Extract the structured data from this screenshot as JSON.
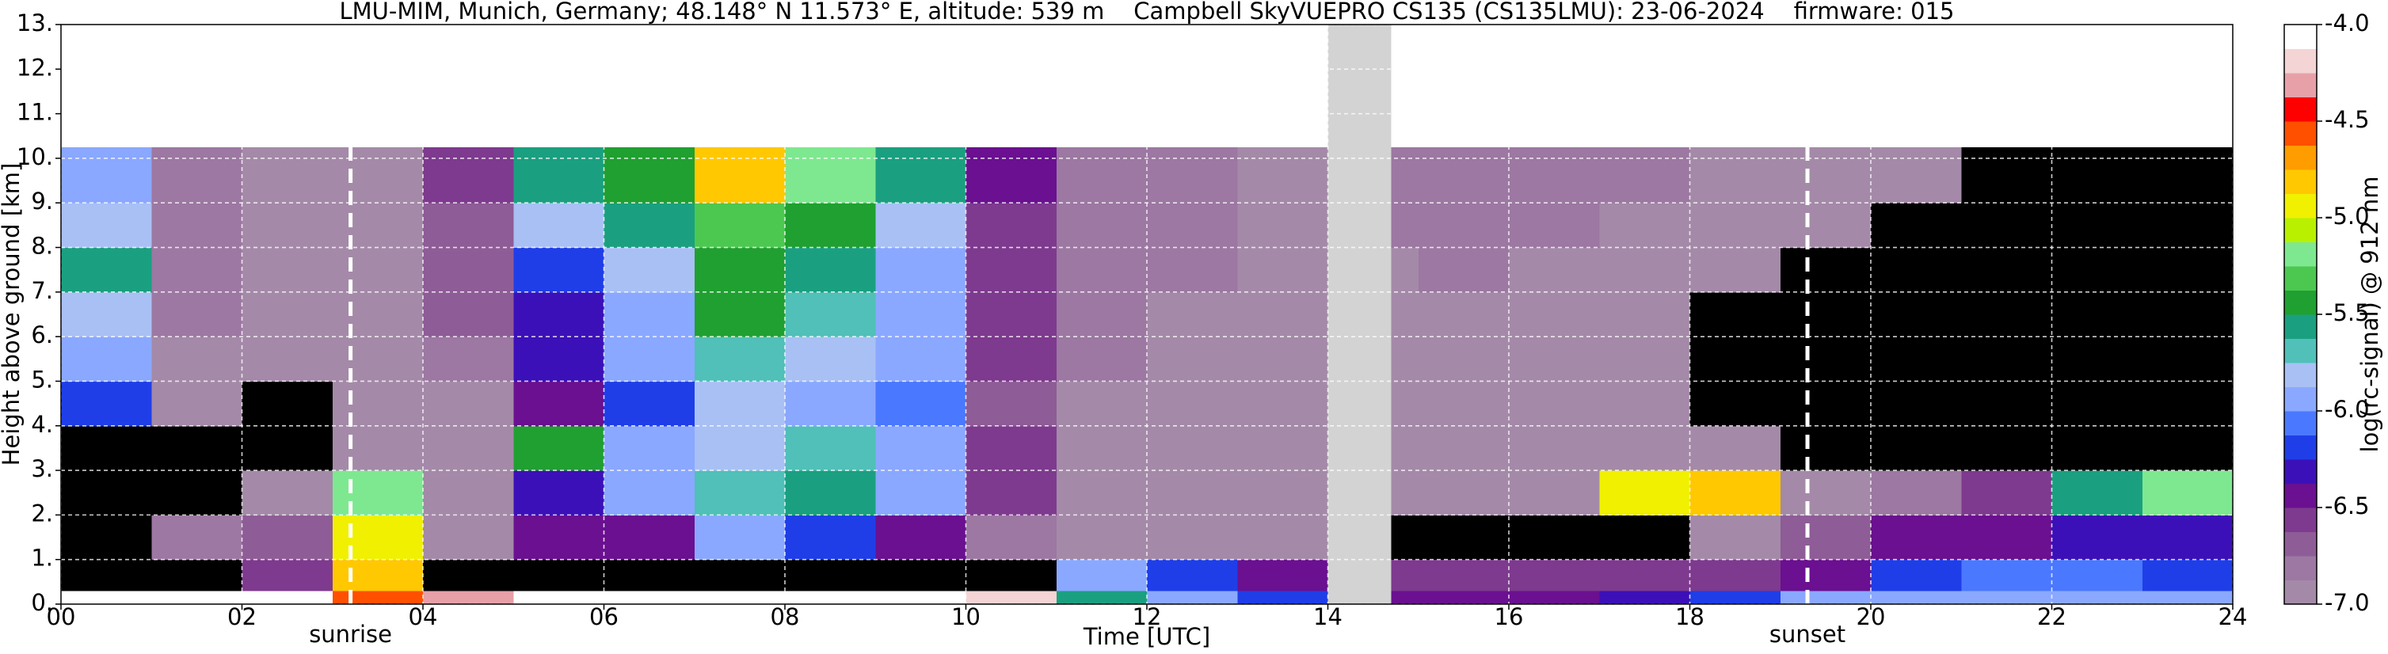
{
  "chart_data": {
    "type": "heatmap",
    "title": "LMU-MIM, Munich, Germany; 48.148° N 11.573° E, altitude: 539 m    Campbell SkyVUEPRO CS135 (CS135LMU): 23-06-2024    firmware: 015",
    "x_label": "Time [UTC]",
    "y_label": "Height above ground [km]",
    "colorbar_label": "log(rc-signal) @ 912 nm",
    "xlim": [
      0,
      24
    ],
    "ylim": [
      0,
      13
    ],
    "xticks": [
      {
        "value": 0,
        "label": "00"
      },
      {
        "value": 2,
        "label": "02"
      },
      {
        "value": 4,
        "label": "04"
      },
      {
        "value": 6,
        "label": "06"
      },
      {
        "value": 8,
        "label": "08"
      },
      10,
      12,
      14,
      16,
      18,
      20,
      22,
      24
    ],
    "yticks": [
      {
        "value": 0,
        "label": "0."
      },
      {
        "value": 1,
        "label": "1."
      },
      {
        "value": 2,
        "label": "2."
      },
      {
        "value": 3,
        "label": "3."
      },
      {
        "value": 4,
        "label": "4."
      },
      {
        "value": 5,
        "label": "5."
      },
      {
        "value": 6,
        "label": "6."
      },
      {
        "value": 7,
        "label": "7."
      },
      {
        "value": 8,
        "label": "8."
      },
      {
        "value": 9,
        "label": "9."
      },
      {
        "value": 10,
        "label": "10."
      },
      {
        "value": 11,
        "label": "11."
      },
      {
        "value": 12,
        "label": "12."
      },
      {
        "value": 13,
        "label": "13."
      }
    ],
    "grid": true,
    "clim": [
      -7,
      -4
    ],
    "cticks": [
      {
        "value": -4,
        "label": "-4.0"
      },
      -4.5,
      {
        "value": -5,
        "label": "-5.0"
      },
      -5.5,
      {
        "value": -6,
        "label": "-6.0"
      },
      -6.5,
      {
        "value": -7,
        "label": "-7.0"
      }
    ],
    "colormap": [
      "#a48aa8",
      "#9c78a2",
      "#8e5c96",
      "#7e3a8e",
      "#6a1090",
      "#3c10b8",
      "#1f3ee8",
      "#4a78ff",
      "#8aa8ff",
      "#a9c0f5",
      "#50c0b8",
      "#1aa080",
      "#20a030",
      "#4cc850",
      "#7ee890",
      "#b8f000",
      "#f0f000",
      "#ffc800",
      "#ff9c00",
      "#ff5000",
      "#ff0000",
      "#e8a0a8",
      "#f4d4d4",
      "#ffffff"
    ],
    "under_color": "#000000",
    "missing_color": "#d3d3d3",
    "x_edges": [
      0,
      1,
      2,
      3,
      4,
      5,
      6,
      7,
      8,
      9,
      10,
      11,
      12,
      13,
      14,
      14.7,
      15,
      16,
      17,
      18,
      19,
      20,
      21,
      22,
      23,
      24
    ],
    "y_edges": [
      0,
      0.3,
      1,
      2,
      3,
      4,
      5,
      6,
      7,
      8,
      9,
      10.25
    ],
    "z": [
      [
        -4.1,
        -4.1,
        -4.1,
        -4.6,
        -4.3,
        -4.1,
        -4.1,
        -4.1,
        -4.1,
        -4.1,
        -4.2,
        -5.6,
        -6.0,
        -6.2,
        null,
        -6.4,
        -6.4,
        -6.4,
        -6.3,
        -6.2,
        -6.0,
        -6.0,
        -6.0,
        -6.0,
        -6.0
      ],
      [
        -7.5,
        -7.5,
        -6.6,
        -4.8,
        -7.5,
        -7.5,
        -7.5,
        -7.5,
        -7.5,
        -7.5,
        -7.5,
        -6.0,
        -6.2,
        -6.5,
        null,
        -6.6,
        -6.6,
        -6.6,
        -6.6,
        -6.6,
        -6.5,
        -6.2,
        -6.1,
        -6.1,
        -6.2
      ],
      [
        -7.5,
        -6.8,
        -6.7,
        -5.0,
        -6.9,
        -6.5,
        -6.4,
        -6.0,
        -6.2,
        -6.4,
        -6.8,
        -6.9,
        -6.9,
        -6.9,
        null,
        -7.2,
        -7.2,
        -7.2,
        -7.2,
        -7.0,
        -6.7,
        -6.5,
        -6.4,
        -6.3,
        -6.3
      ],
      [
        -7.5,
        -7.5,
        -7.0,
        -5.2,
        -6.9,
        -6.3,
        -6.0,
        -5.7,
        -5.6,
        -5.9,
        -6.6,
        -6.9,
        -6.9,
        -6.9,
        null,
        -7.0,
        -7.0,
        -7.0,
        -5.0,
        -4.8,
        -6.9,
        -6.8,
        -6.6,
        -5.6,
        -5.2
      ],
      [
        -7.2,
        -7.3,
        -7.3,
        -7.0,
        -6.9,
        -5.5,
        -6.0,
        -5.8,
        -5.7,
        -6.0,
        -6.6,
        -6.9,
        -6.9,
        -7.0,
        null,
        -7.0,
        -7.0,
        -7.0,
        -7.0,
        -7.0,
        -7.1,
        -7.2,
        -7.2,
        -7.3,
        -7.3
      ],
      [
        -6.2,
        -7.0,
        -7.2,
        -7.0,
        -6.9,
        -6.4,
        -6.2,
        -5.8,
        -5.9,
        -6.1,
        -6.7,
        -6.9,
        -6.9,
        -7.0,
        null,
        -7.0,
        -7.0,
        -7.0,
        -7.0,
        -7.1,
        -7.2,
        -7.3,
        -7.3,
        -7.3,
        -7.3
      ],
      [
        -5.9,
        -6.9,
        -7.0,
        -6.9,
        -6.8,
        -6.3,
        -6.0,
        -5.7,
        -5.8,
        -6.0,
        -6.6,
        -6.8,
        -6.9,
        -7.0,
        null,
        -7.0,
        -7.0,
        -7.0,
        -7.0,
        -7.1,
        -7.2,
        -7.3,
        -7.3,
        -7.3,
        -7.3
      ],
      [
        -5.8,
        -6.8,
        -7.0,
        -6.9,
        -6.7,
        -6.3,
        -5.9,
        -5.5,
        -5.7,
        -6.0,
        -6.6,
        -6.8,
        -6.9,
        -7.0,
        null,
        -7.0,
        -6.9,
        -6.9,
        -7.0,
        -7.1,
        -7.2,
        -7.2,
        -7.3,
        -7.3,
        -7.3
      ],
      [
        -5.6,
        -6.8,
        -7.0,
        -6.9,
        -6.7,
        -6.2,
        -5.8,
        -5.4,
        -5.6,
        -5.9,
        -6.6,
        -6.8,
        -6.8,
        -6.9,
        null,
        -6.9,
        -6.8,
        -6.9,
        -6.9,
        -7.0,
        -7.1,
        -7.2,
        -7.2,
        -7.2,
        -7.3
      ],
      [
        -5.8,
        -6.8,
        -6.9,
        -6.9,
        -6.7,
        -5.8,
        -5.6,
        -5.3,
        -5.4,
        -5.8,
        -6.6,
        -6.8,
        -6.8,
        -6.9,
        null,
        -6.8,
        -6.8,
        -6.8,
        -6.9,
        -7.0,
        -7.0,
        -7.1,
        -7.1,
        -7.2,
        -7.2
      ],
      [
        -6.0,
        -6.8,
        -6.9,
        -6.9,
        -6.6,
        -5.6,
        -5.5,
        -4.8,
        -5.2,
        -5.6,
        -6.5,
        -6.8,
        -6.8,
        -6.9,
        null,
        -6.8,
        -6.8,
        -6.8,
        -6.8,
        -6.9,
        -7.0,
        -7.0,
        -7.1,
        -7.1,
        -7.1
      ]
    ],
    "annotations": [
      {
        "text": "sunrise",
        "x": 3.2
      },
      {
        "text": "sunset",
        "x": 19.3
      }
    ]
  }
}
